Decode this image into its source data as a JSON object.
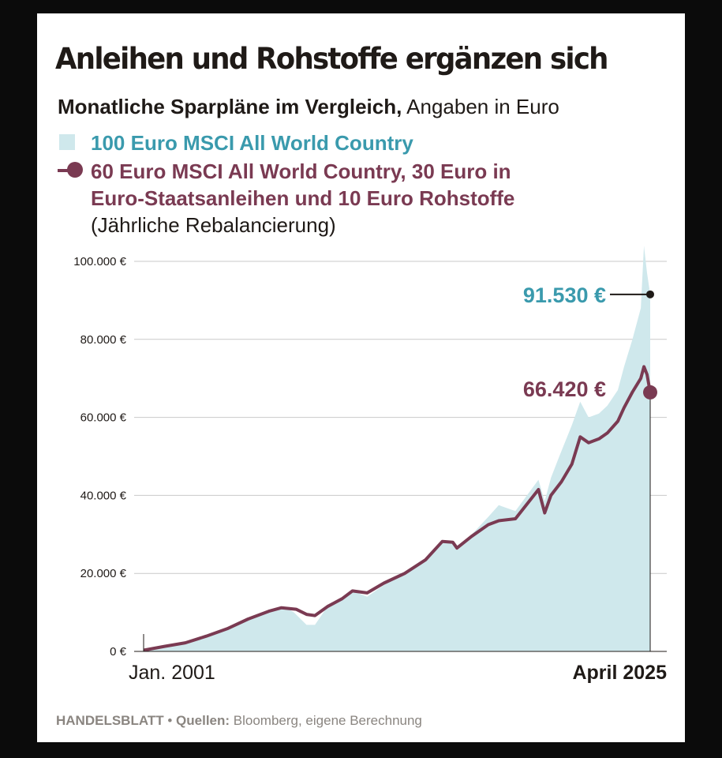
{
  "chart_data": {
    "type": "area",
    "title": "Anleihen und Rohstoffe ergänzen sich",
    "subtitle_bold": "Monatliche Sparpläne im Vergleich,",
    "subtitle_normal": " Angaben in Euro",
    "x_start_label": "Jan. 2001",
    "x_end_label": "April 2025",
    "ylim": [
      0,
      100000
    ],
    "yticks": [
      "0 €",
      "20.000 €",
      "40.000 €",
      "60.000 €",
      "80.000 €",
      "100.000 €"
    ],
    "ytick_values": [
      0,
      20000,
      40000,
      60000,
      80000,
      100000
    ],
    "grid": true,
    "series": [
      {
        "name": "100 Euro MSCI All World Country",
        "style": "area",
        "color": "#cfe8ec",
        "label_color": "#3a9aad",
        "end_value": 91530,
        "end_label": "91.530 €",
        "points": [
          [
            2001.0,
            100
          ],
          [
            2002.0,
            1100
          ],
          [
            2003.0,
            1800
          ],
          [
            2004.0,
            3600
          ],
          [
            2005.0,
            5600
          ],
          [
            2006.0,
            8000
          ],
          [
            2007.0,
            10600
          ],
          [
            2007.7,
            11600
          ],
          [
            2008.2,
            10000
          ],
          [
            2008.8,
            6800
          ],
          [
            2009.2,
            6800
          ],
          [
            2009.8,
            11500
          ],
          [
            2010.5,
            13000
          ],
          [
            2011.0,
            15500
          ],
          [
            2011.7,
            14000
          ],
          [
            2012.5,
            17000
          ],
          [
            2013.5,
            20000
          ],
          [
            2014.5,
            23000
          ],
          [
            2015.3,
            27800
          ],
          [
            2015.8,
            28000
          ],
          [
            2016.1,
            26500
          ],
          [
            2016.8,
            30500
          ],
          [
            2017.5,
            34500
          ],
          [
            2018.0,
            37500
          ],
          [
            2018.8,
            36000
          ],
          [
            2019.9,
            44000
          ],
          [
            2020.2,
            38500
          ],
          [
            2020.5,
            44500
          ],
          [
            2020.9,
            50000
          ],
          [
            2021.5,
            58000
          ],
          [
            2021.9,
            64000
          ],
          [
            2022.3,
            60000
          ],
          [
            2022.8,
            61000
          ],
          [
            2023.2,
            63000
          ],
          [
            2023.7,
            67000
          ],
          [
            2024.0,
            73000
          ],
          [
            2024.4,
            80000
          ],
          [
            2024.8,
            88000
          ],
          [
            2024.95,
            104000
          ],
          [
            2025.1,
            97000
          ],
          [
            2025.25,
            91530
          ]
        ]
      },
      {
        "name": "60 Euro MSCI All World Country, 30 Euro in Euro-Staatsanleihen und 10 Euro Rohstoffe",
        "name_line1": "60 Euro MSCI All World Country, 30 Euro in",
        "name_line2": "Euro-Staatsanleihen und 10 Euro Rohstoffe",
        "note": "(Jährliche Rebalancierung)",
        "style": "line",
        "color": "#7a3a52",
        "end_value": 66420,
        "end_label": "66.420 €",
        "points": [
          [
            2001.0,
            300
          ],
          [
            2002.0,
            1300
          ],
          [
            2003.0,
            2200
          ],
          [
            2004.0,
            3900
          ],
          [
            2005.0,
            5800
          ],
          [
            2006.0,
            8300
          ],
          [
            2007.0,
            10300
          ],
          [
            2007.6,
            11200
          ],
          [
            2008.3,
            10800
          ],
          [
            2008.8,
            9500
          ],
          [
            2009.2,
            9200
          ],
          [
            2009.8,
            11500
          ],
          [
            2010.5,
            13500
          ],
          [
            2011.0,
            15500
          ],
          [
            2011.7,
            15000
          ],
          [
            2012.5,
            17500
          ],
          [
            2013.5,
            20000
          ],
          [
            2014.5,
            23500
          ],
          [
            2015.3,
            28200
          ],
          [
            2015.8,
            28000
          ],
          [
            2016.0,
            26500
          ],
          [
            2016.7,
            29500
          ],
          [
            2017.5,
            32500
          ],
          [
            2018.0,
            33500
          ],
          [
            2018.8,
            34000
          ],
          [
            2019.9,
            41500
          ],
          [
            2020.2,
            35500
          ],
          [
            2020.5,
            40000
          ],
          [
            2021.0,
            43500
          ],
          [
            2021.5,
            48000
          ],
          [
            2021.9,
            55000
          ],
          [
            2022.3,
            53500
          ],
          [
            2022.8,
            54500
          ],
          [
            2023.2,
            56000
          ],
          [
            2023.7,
            59000
          ],
          [
            2024.0,
            62500
          ],
          [
            2024.4,
            66500
          ],
          [
            2024.8,
            70000
          ],
          [
            2024.95,
            73000
          ],
          [
            2025.1,
            71000
          ],
          [
            2025.25,
            66420
          ]
        ]
      }
    ]
  },
  "footer": {
    "brand": "HANDELSBLATT",
    "separator": " • ",
    "sources_label": "Quellen:",
    "sources_text": " Bloomberg, eigene Berechnung"
  }
}
